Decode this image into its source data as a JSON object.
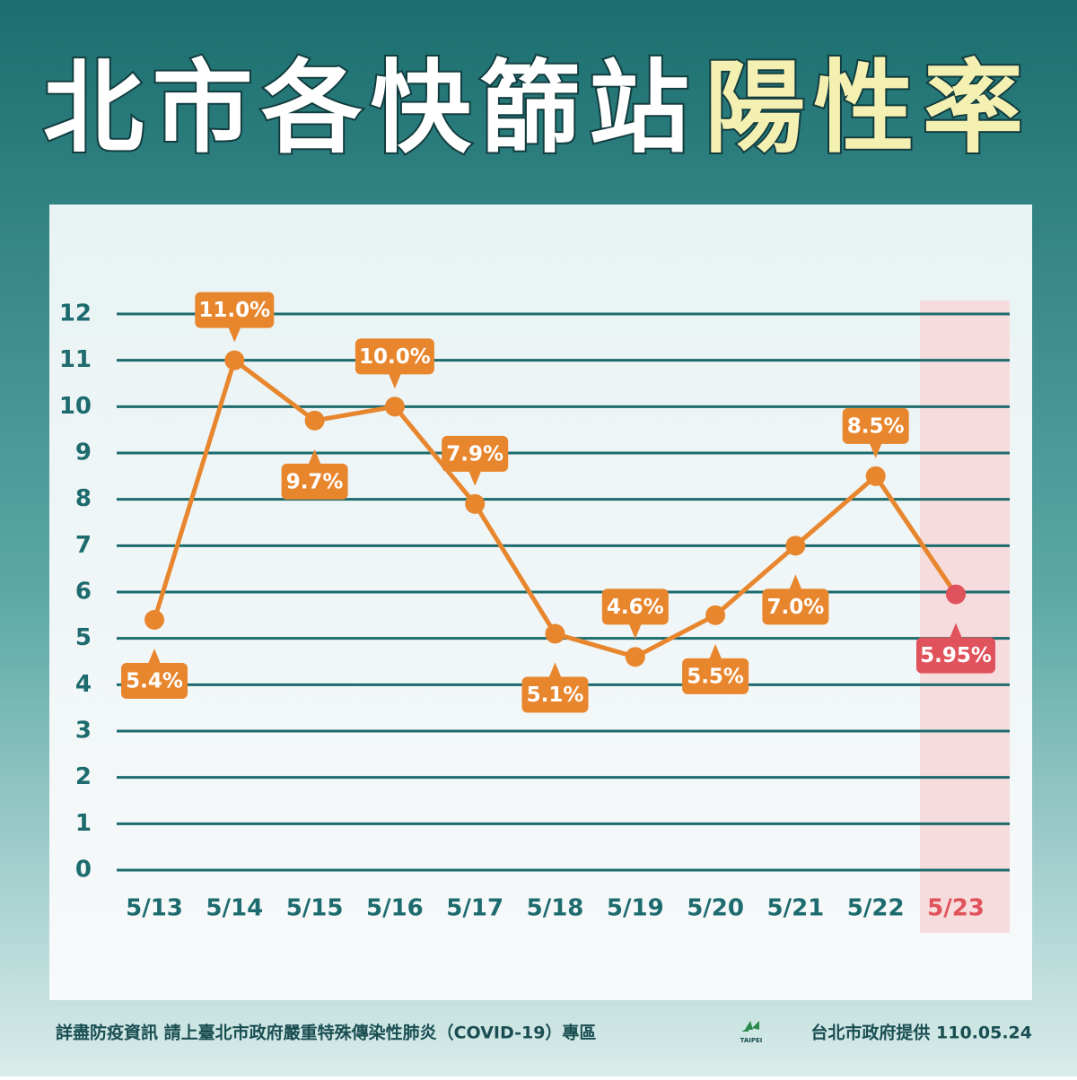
{
  "chart_data": {
    "type": "line",
    "title": "北市各快篩站",
    "title_highlight": "陽性率",
    "categories": [
      "5/13",
      "5/14",
      "5/15",
      "5/16",
      "5/17",
      "5/18",
      "5/19",
      "5/20",
      "5/21",
      "5/22",
      "5/23"
    ],
    "series": [
      {
        "color": "#e8862e",
        "values": [
          5.4,
          11.0,
          9.7,
          10.0,
          7.9,
          5.1,
          4.6,
          5.5,
          7.0,
          8.5,
          5.95
        ],
        "value_labels": [
          "5.4%",
          "11.0%",
          "9.7%",
          "10.0%",
          "7.9%",
          "5.1%",
          "4.6%",
          "5.5%",
          "7.0%",
          "8.5%",
          "5.95%"
        ],
        "point_colors": [
          "#e8862e",
          "#e8862e",
          "#e8862e",
          "#e8862e",
          "#e8862e",
          "#e8862e",
          "#e8862e",
          "#e8862e",
          "#e8862e",
          "#e8862e",
          "#e0525c"
        ]
      }
    ],
    "ylim": [
      0,
      12
    ],
    "yticks": [
      0,
      1,
      2,
      3,
      4,
      5,
      6,
      7,
      8,
      9,
      10,
      11,
      12
    ],
    "grid": true,
    "footer": "詳盡防疫資訊 請上臺北市政府嚴重特殊傳染性肺炎（COVID-19）專區",
    "logo_text": "TAIPEI",
    "credit": "台北市政府提供 110.05.24"
  }
}
